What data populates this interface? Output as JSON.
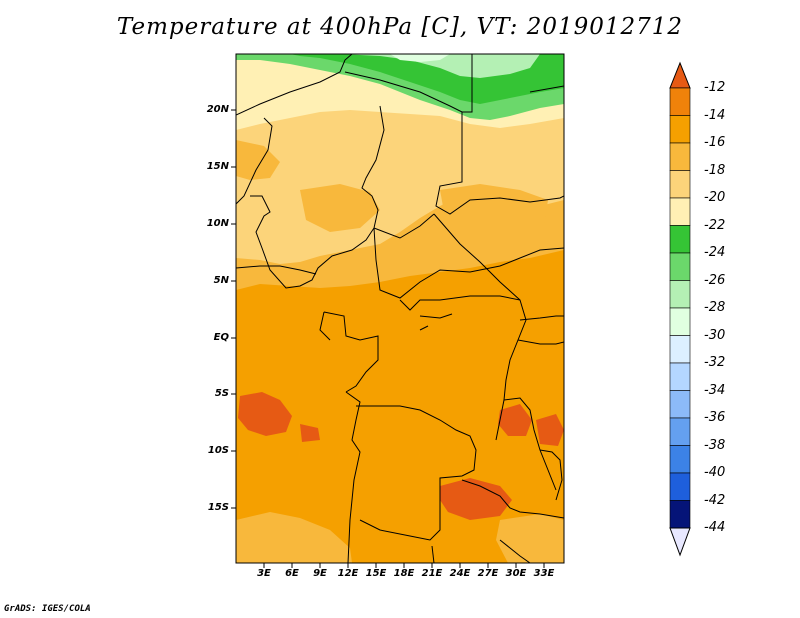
{
  "title": "Temperature at 400hPa [C], VT: 2019012712",
  "credit": "GrADS: IGES/COLA",
  "map": {
    "lat_labels": [
      "20N",
      "15N",
      "10N",
      "5N",
      "EQ",
      "5S",
      "10S",
      "15S"
    ],
    "lon_labels": [
      "3E",
      "6E",
      "9E",
      "12E",
      "15E",
      "18E",
      "21E",
      "24E",
      "27E",
      "30E",
      "33E"
    ],
    "lat_values": [
      20,
      15,
      10,
      5,
      0,
      -5,
      -10,
      -15
    ],
    "lon_values": [
      3,
      6,
      9,
      12,
      15,
      18,
      21,
      24,
      27,
      30,
      33
    ],
    "lat_range": [
      -20,
      24.5
    ],
    "lon_range": [
      0,
      35
    ]
  },
  "colorbar": {
    "labels": [
      "-12",
      "-14",
      "-16",
      "-18",
      "-20",
      "-22",
      "-24",
      "-26",
      "-28",
      "-30",
      "-32",
      "-34",
      "-36",
      "-38",
      "-40",
      "-42",
      "-44"
    ],
    "colors": [
      "#e65a14",
      "#f0820a",
      "#f5a000",
      "#f8b83c",
      "#fcd47a",
      "#fff0b4",
      "#35c435",
      "#6bd86b",
      "#b4f0b4",
      "#e0ffe0",
      "#dcf0ff",
      "#b4d7ff",
      "#8cbaf8",
      "#64a0f0",
      "#3c82e6",
      "#1e5fdc",
      "#0a3cc8",
      "#051478"
    ]
  },
  "colors": {
    "dominant": "#f5a000",
    "warm_patch": "#e65a14",
    "north_band": "#35c435",
    "border_line": "#000000"
  }
}
